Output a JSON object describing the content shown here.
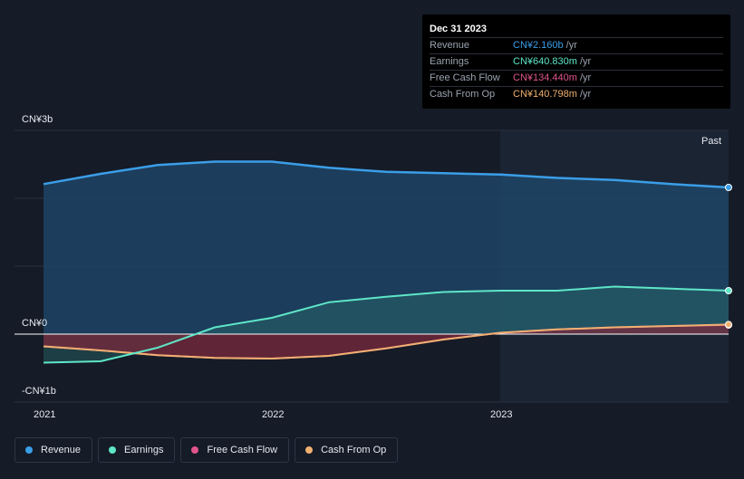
{
  "tooltip": {
    "date": "Dec 31 2023",
    "rows": [
      {
        "label": "Revenue",
        "value": "CN¥2.160b",
        "unit": "/yr",
        "color": "#3b9ee8"
      },
      {
        "label": "Earnings",
        "value": "CN¥640.830m",
        "unit": "/yr",
        "color": "#5ee6c8"
      },
      {
        "label": "Free Cash Flow",
        "value": "CN¥134.440m",
        "unit": "/yr",
        "color": "#e0548c"
      },
      {
        "label": "Cash From Op",
        "value": "CN¥140.798m",
        "unit": "/yr",
        "color": "#f0b070"
      }
    ]
  },
  "past_label": "Past",
  "legend": [
    {
      "label": "Revenue",
      "color": "#3b9ee8"
    },
    {
      "label": "Earnings",
      "color": "#5ee6c8"
    },
    {
      "label": "Free Cash Flow",
      "color": "#e0548c"
    },
    {
      "label": "Cash From Op",
      "color": "#f0b070"
    }
  ],
  "chart_data": {
    "type": "area",
    "ylim": [
      -1.0,
      3.0
    ],
    "xlim": [
      2021.0,
      2024.0
    ],
    "y_tick_labels": [
      {
        "value": 3,
        "label": "CN¥3b"
      },
      {
        "value": 0,
        "label": "CN¥0"
      },
      {
        "value": -1,
        "label": "-CN¥1b"
      }
    ],
    "x_tick_labels": [
      {
        "value": 2021,
        "label": "2021"
      },
      {
        "value": 2022,
        "label": "2022"
      },
      {
        "value": 2023,
        "label": "2023"
      }
    ],
    "past_start": 2023.0,
    "series": [
      {
        "name": "Revenue",
        "color": "#3b9ee8",
        "x": [
          2021.0,
          2021.25,
          2021.5,
          2021.75,
          2022.0,
          2022.25,
          2022.5,
          2022.75,
          2023.0,
          2023.25,
          2023.5,
          2023.75,
          2024.0
        ],
        "y": [
          2.21,
          2.36,
          2.49,
          2.54,
          2.54,
          2.45,
          2.39,
          2.37,
          2.35,
          2.3,
          2.27,
          2.21,
          2.16
        ]
      },
      {
        "name": "Earnings",
        "color": "#5ee6c8",
        "x": [
          2021.0,
          2021.25,
          2021.5,
          2021.75,
          2022.0,
          2022.25,
          2022.5,
          2022.75,
          2023.0,
          2023.25,
          2023.5,
          2023.75,
          2024.0
        ],
        "y": [
          -0.42,
          -0.4,
          -0.2,
          0.1,
          0.24,
          0.47,
          0.55,
          0.62,
          0.64,
          0.64,
          0.7,
          0.67,
          0.64
        ]
      },
      {
        "name": "Free Cash Flow",
        "color": "#e0548c",
        "x": [
          2021.0,
          2021.25,
          2021.5,
          2021.75,
          2022.0,
          2022.25,
          2022.5,
          2022.75,
          2023.0,
          2023.25,
          2023.5,
          2023.75,
          2024.0
        ],
        "y": [
          -0.18,
          -0.24,
          -0.31,
          -0.35,
          -0.36,
          -0.32,
          -0.21,
          -0.08,
          0.02,
          0.07,
          0.1,
          0.12,
          0.134
        ]
      },
      {
        "name": "Cash From Op",
        "color": "#f0b070",
        "x": [
          2021.0,
          2021.25,
          2021.5,
          2021.75,
          2022.0,
          2022.25,
          2022.5,
          2022.75,
          2023.0,
          2023.25,
          2023.5,
          2023.75,
          2024.0
        ],
        "y": [
          -0.18,
          -0.24,
          -0.31,
          -0.35,
          -0.36,
          -0.32,
          -0.21,
          -0.08,
          0.02,
          0.07,
          0.1,
          0.12,
          0.141
        ]
      }
    ]
  }
}
